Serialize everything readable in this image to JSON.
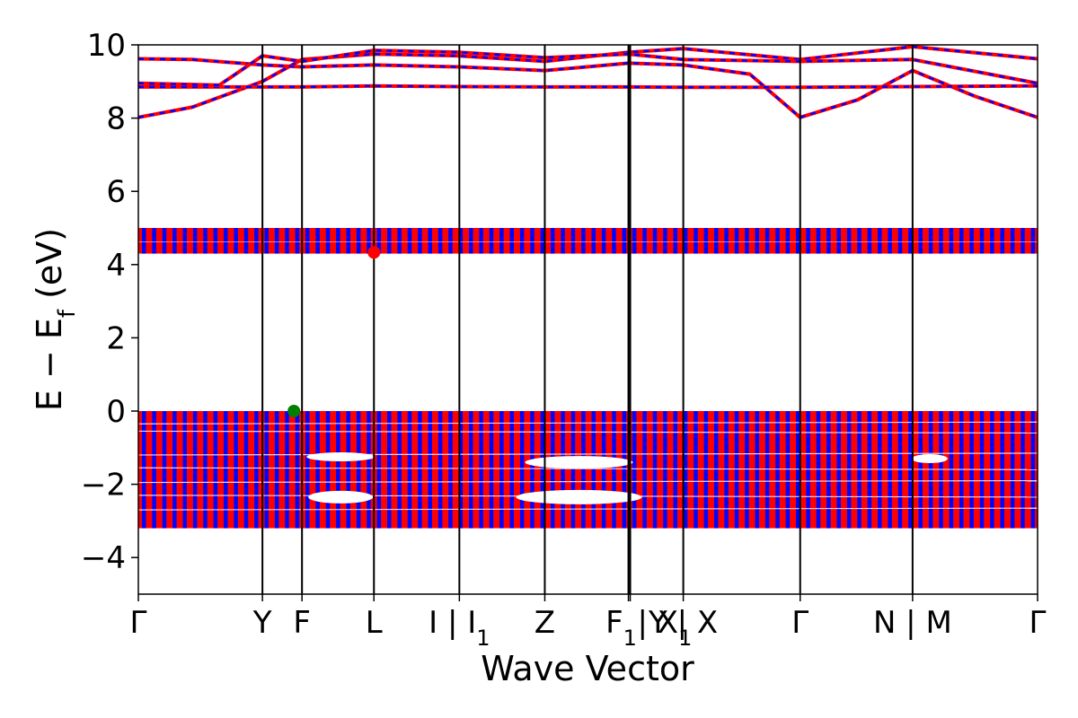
{
  "chart_data": {
    "type": "line",
    "title": "",
    "xlabel": "Wave Vector",
    "ylabel": "E − E",
    "ylabel_sub": "f",
    "ylabel_unit": " (eV)",
    "ylim": [
      -5,
      10
    ],
    "yticks": [
      -4,
      -2,
      0,
      2,
      4,
      6,
      8,
      10
    ],
    "xlim": [
      0,
      1
    ],
    "grid": false,
    "kpoints": [
      {
        "x": 0.0,
        "main": "Γ",
        "sub": ""
      },
      {
        "x": 0.138,
        "main": "Y",
        "sub": ""
      },
      {
        "x": 0.182,
        "main": "F",
        "sub": ""
      },
      {
        "x": 0.262,
        "main": "L",
        "sub": ""
      },
      {
        "x": 0.357,
        "main": "I | I",
        "sub": "1"
      },
      {
        "x": 0.452,
        "main": "Z",
        "sub": ""
      },
      {
        "x": 0.545,
        "main": "F",
        "sub": "1"
      },
      {
        "x": 0.547,
        "main": " | X",
        "sub": "1"
      },
      {
        "x": 0.606,
        "main": "Y | X",
        "sub": ""
      },
      {
        "x": 0.736,
        "main": "Γ",
        "sub": ""
      },
      {
        "x": 0.861,
        "main": "N | M",
        "sub": ""
      },
      {
        "x": 1.0,
        "main": "Γ",
        "sub": ""
      }
    ],
    "series_colors": {
      "spin_up": "#ff0000",
      "spin_down": "#0000ff"
    },
    "valence_band": {
      "top": 0.0,
      "bottom": -3.2
    },
    "flat_band": {
      "top": 5.0,
      "bottom": 4.3
    },
    "conduction_bands": [
      {
        "name": "",
        "points": [
          [
            0.0,
            8.02
          ],
          [
            0.06,
            8.3
          ],
          [
            0.138,
            9.0
          ],
          [
            0.182,
            9.6
          ],
          [
            0.262,
            9.75
          ],
          [
            0.357,
            9.7
          ],
          [
            0.452,
            9.55
          ],
          [
            0.545,
            9.8
          ],
          [
            0.606,
            9.9
          ],
          [
            0.736,
            9.6
          ],
          [
            0.861,
            9.95
          ],
          [
            1.0,
            9.62
          ]
        ]
      },
      {
        "name": "",
        "points": [
          [
            0.0,
            9.62
          ],
          [
            0.06,
            9.6
          ],
          [
            0.138,
            9.45
          ],
          [
            0.182,
            9.4
          ],
          [
            0.262,
            9.45
          ],
          [
            0.357,
            9.4
          ],
          [
            0.452,
            9.3
          ],
          [
            0.545,
            9.5
          ],
          [
            0.606,
            9.45
          ],
          [
            0.68,
            9.2
          ],
          [
            0.736,
            8.02
          ],
          [
            0.8,
            8.5
          ],
          [
            0.861,
            9.3
          ],
          [
            0.93,
            8.6
          ],
          [
            1.0,
            8.02
          ]
        ]
      },
      {
        "name": "",
        "points": [
          [
            0.0,
            8.85
          ],
          [
            0.138,
            8.85
          ],
          [
            0.182,
            8.85
          ],
          [
            0.262,
            8.88
          ],
          [
            0.357,
            8.86
          ],
          [
            0.452,
            8.85
          ],
          [
            0.545,
            8.85
          ],
          [
            0.606,
            8.84
          ],
          [
            0.736,
            8.84
          ],
          [
            0.861,
            8.86
          ],
          [
            1.0,
            8.88
          ]
        ]
      },
      {
        "name": "",
        "points": [
          [
            0.0,
            8.95
          ],
          [
            0.09,
            8.9
          ],
          [
            0.138,
            9.7
          ],
          [
            0.182,
            9.55
          ],
          [
            0.262,
            9.85
          ],
          [
            0.357,
            9.8
          ],
          [
            0.452,
            9.65
          ],
          [
            0.545,
            9.75
          ],
          [
            0.606,
            9.6
          ],
          [
            0.736,
            9.55
          ],
          [
            0.861,
            9.6
          ],
          [
            1.0,
            8.95
          ]
        ]
      }
    ],
    "markers": [
      {
        "name": "CBM",
        "x": 0.262,
        "y": 4.33,
        "color": "#ff0000"
      },
      {
        "name": "VBM",
        "x": 0.173,
        "y": 0.0,
        "color": "#008000"
      }
    ]
  }
}
